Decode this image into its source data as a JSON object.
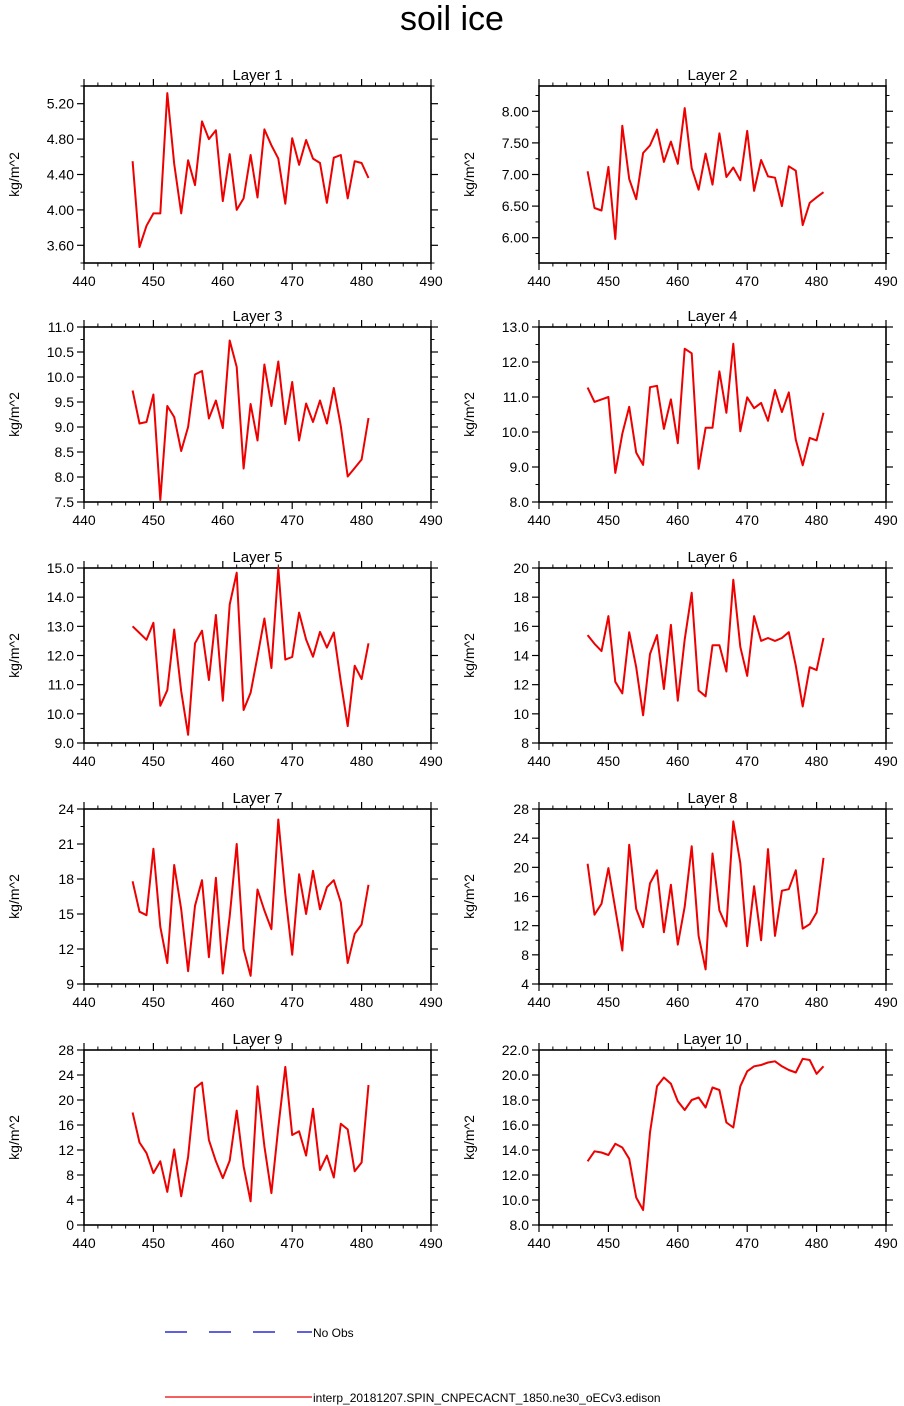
{
  "title": "soil ice",
  "legend": {
    "entries": [
      {
        "label": "No Obs",
        "color": "#0000cc",
        "style": "dashed"
      },
      {
        "label": "interp_20181207.SPIN_CNPECACNT_1850.ne30_oECv3.edison",
        "color": "#ee0000",
        "style": "solid"
      }
    ]
  },
  "chart_data": [
    {
      "type": "line",
      "title": "Layer 1",
      "ylabel": "kg/m^2",
      "xlim": [
        440,
        490
      ],
      "ylim": [
        3.4,
        5.4
      ],
      "xticks": [
        440,
        450,
        460,
        470,
        480,
        490
      ],
      "yticks": [
        3.6,
        4.0,
        4.4,
        4.8,
        5.2
      ],
      "ydecimals": 2,
      "series": [
        {
          "name": "interp_20181207.SPIN_CNPECACNT_1850.ne30_oECv3.edison",
          "x": [
            447,
            448,
            449,
            450,
            451,
            452,
            453,
            454,
            455,
            456,
            457,
            458,
            459,
            460,
            461,
            462,
            463,
            464,
            465,
            466,
            467,
            468,
            469,
            470,
            471,
            472,
            473,
            474,
            475,
            476,
            477,
            478,
            479,
            480,
            481
          ],
          "y": [
            4.55,
            3.58,
            3.82,
            3.96,
            3.96,
            5.32,
            4.52,
            3.96,
            4.56,
            4.28,
            5.0,
            4.8,
            4.9,
            4.1,
            4.63,
            4.0,
            4.13,
            4.62,
            4.14,
            4.91,
            4.73,
            4.58,
            4.07,
            4.81,
            4.51,
            4.79,
            4.58,
            4.53,
            4.08,
            4.59,
            4.62,
            4.13,
            4.55,
            4.53,
            4.36
          ]
        }
      ]
    },
    {
      "type": "line",
      "title": "Layer 2",
      "ylabel": "kg/m^2",
      "xlim": [
        440,
        490
      ],
      "ylim": [
        5.6,
        8.4
      ],
      "xticks": [
        440,
        450,
        460,
        470,
        480,
        490
      ],
      "yticks": [
        6.0,
        6.5,
        7.0,
        7.5,
        8.0
      ],
      "ydecimals": 2,
      "series": [
        {
          "name": "interp_20181207.SPIN_CNPECACNT_1850.ne30_oECv3.edison",
          "x": [
            447,
            448,
            449,
            450,
            451,
            452,
            453,
            454,
            455,
            456,
            457,
            458,
            459,
            460,
            461,
            462,
            463,
            464,
            465,
            466,
            467,
            468,
            469,
            470,
            471,
            472,
            473,
            474,
            475,
            476,
            477,
            478,
            479,
            480,
            481
          ],
          "y": [
            7.05,
            6.47,
            6.43,
            7.12,
            5.98,
            7.77,
            6.93,
            6.61,
            7.34,
            7.46,
            7.71,
            7.2,
            7.52,
            7.17,
            8.05,
            7.1,
            6.76,
            7.33,
            6.84,
            7.65,
            6.96,
            7.11,
            6.91,
            7.69,
            6.74,
            7.23,
            6.97,
            6.95,
            6.5,
            7.13,
            7.06,
            6.2,
            6.55,
            6.64,
            6.72
          ]
        }
      ]
    },
    {
      "type": "line",
      "title": "Layer 3",
      "ylabel": "kg/m^2",
      "xlim": [
        440,
        490
      ],
      "ylim": [
        7.5,
        11.0
      ],
      "xticks": [
        440,
        450,
        460,
        470,
        480,
        490
      ],
      "yticks": [
        7.5,
        8.0,
        8.5,
        9.0,
        9.5,
        10.0,
        10.5,
        11.0
      ],
      "ydecimals": 1,
      "series": [
        {
          "name": "interp_20181207.SPIN_CNPECACNT_1850.ne30_oECv3.edison",
          "x": [
            447,
            448,
            449,
            450,
            451,
            452,
            453,
            454,
            455,
            456,
            457,
            458,
            459,
            460,
            461,
            462,
            463,
            464,
            465,
            466,
            467,
            468,
            469,
            470,
            471,
            472,
            473,
            474,
            475,
            476,
            477,
            478,
            479,
            480,
            481
          ],
          "y": [
            9.73,
            9.07,
            9.1,
            9.65,
            7.54,
            9.42,
            9.2,
            8.52,
            9.0,
            10.05,
            10.12,
            9.17,
            9.53,
            8.98,
            10.73,
            10.2,
            8.17,
            9.46,
            8.73,
            10.25,
            9.42,
            10.31,
            9.06,
            9.9,
            8.73,
            9.47,
            9.1,
            9.53,
            9.07,
            9.78,
            9.02,
            8.01,
            8.18,
            8.35,
            9.18
          ]
        }
      ]
    },
    {
      "type": "line",
      "title": "Layer 4",
      "ylabel": "kg/m^2",
      "xlim": [
        440,
        490
      ],
      "ylim": [
        8.0,
        13.0
      ],
      "xticks": [
        440,
        450,
        460,
        470,
        480,
        490
      ],
      "yticks": [
        8.0,
        9.0,
        10.0,
        11.0,
        12.0,
        13.0
      ],
      "ydecimals": 1,
      "series": [
        {
          "name": "interp_20181207.SPIN_CNPECACNT_1850.ne30_oECv3.edison",
          "x": [
            447,
            448,
            449,
            450,
            451,
            452,
            453,
            454,
            455,
            456,
            457,
            458,
            459,
            460,
            461,
            462,
            463,
            464,
            465,
            466,
            467,
            468,
            469,
            470,
            471,
            472,
            473,
            474,
            475,
            476,
            477,
            478,
            479,
            480,
            481
          ],
          "y": [
            11.27,
            10.86,
            10.93,
            11.0,
            8.83,
            9.95,
            10.72,
            9.41,
            9.06,
            11.28,
            11.32,
            10.09,
            10.93,
            9.68,
            12.38,
            12.25,
            8.95,
            10.12,
            10.12,
            11.73,
            10.55,
            12.52,
            10.02,
            10.99,
            10.68,
            10.83,
            10.32,
            11.2,
            10.57,
            11.13,
            9.78,
            9.05,
            9.83,
            9.76,
            10.55
          ]
        }
      ]
    },
    {
      "type": "line",
      "title": "Layer 5",
      "ylabel": "kg/m^2",
      "xlim": [
        440,
        490
      ],
      "ylim": [
        9.0,
        15.0
      ],
      "xticks": [
        440,
        450,
        460,
        470,
        480,
        490
      ],
      "yticks": [
        9.0,
        10.0,
        11.0,
        12.0,
        13.0,
        14.0,
        15.0
      ],
      "ydecimals": 1,
      "series": [
        {
          "name": "interp_20181207.SPIN_CNPECACNT_1850.ne30_oECv3.edison",
          "x": [
            447,
            448,
            449,
            450,
            451,
            452,
            453,
            454,
            455,
            456,
            457,
            458,
            459,
            460,
            461,
            462,
            463,
            464,
            465,
            466,
            467,
            468,
            469,
            470,
            471,
            472,
            473,
            474,
            475,
            476,
            477,
            478,
            479,
            480,
            481
          ],
          "y": [
            13.0,
            12.77,
            12.54,
            13.12,
            10.28,
            10.81,
            12.89,
            10.78,
            9.28,
            12.42,
            12.85,
            11.16,
            13.39,
            10.45,
            13.75,
            14.84,
            10.13,
            10.72,
            11.97,
            13.27,
            11.57,
            15.0,
            11.86,
            11.95,
            13.47,
            12.55,
            11.96,
            12.81,
            12.27,
            12.79,
            11.1,
            9.58,
            11.65,
            11.19,
            12.42
          ]
        }
      ]
    },
    {
      "type": "line",
      "title": "Layer 6",
      "ylabel": "kg/m^2",
      "xlim": [
        440,
        490
      ],
      "ylim": [
        8,
        20
      ],
      "xticks": [
        440,
        450,
        460,
        470,
        480,
        490
      ],
      "yticks": [
        8,
        10,
        12,
        14,
        16,
        18,
        20
      ],
      "ydecimals": 0,
      "series": [
        {
          "name": "interp_20181207.SPIN_CNPECACNT_1850.ne30_oECv3.edison",
          "x": [
            447,
            448,
            449,
            450,
            451,
            452,
            453,
            454,
            455,
            456,
            457,
            458,
            459,
            460,
            461,
            462,
            463,
            464,
            465,
            466,
            467,
            468,
            469,
            470,
            471,
            472,
            473,
            474,
            475,
            476,
            477,
            478,
            479,
            480,
            481
          ],
          "y": [
            15.4,
            14.8,
            14.3,
            16.7,
            12.2,
            11.4,
            15.6,
            13.2,
            9.9,
            14.1,
            15.4,
            11.7,
            16.1,
            10.9,
            15.1,
            18.3,
            11.6,
            11.2,
            14.7,
            14.7,
            12.9,
            19.2,
            14.6,
            12.6,
            16.7,
            15.0,
            15.2,
            15.0,
            15.2,
            15.6,
            13.3,
            10.5,
            13.2,
            13.0,
            15.2
          ]
        }
      ]
    },
    {
      "type": "line",
      "title": "Layer 7",
      "ylabel": "kg/m^2",
      "xlim": [
        440,
        490
      ],
      "ylim": [
        9,
        24
      ],
      "xticks": [
        440,
        450,
        460,
        470,
        480,
        490
      ],
      "yticks": [
        9,
        12,
        15,
        18,
        21,
        24
      ],
      "ydecimals": 0,
      "series": [
        {
          "name": "interp_20181207.SPIN_CNPECACNT_1850.ne30_oECv3.edison",
          "x": [
            447,
            448,
            449,
            450,
            451,
            452,
            453,
            454,
            455,
            456,
            457,
            458,
            459,
            460,
            461,
            462,
            463,
            464,
            465,
            466,
            467,
            468,
            469,
            470,
            471,
            472,
            473,
            474,
            475,
            476,
            477,
            478,
            479,
            480,
            481
          ],
          "y": [
            17.8,
            15.2,
            14.9,
            20.6,
            13.9,
            10.8,
            19.2,
            15.4,
            10.1,
            15.7,
            17.9,
            11.3,
            18.1,
            9.9,
            14.8,
            21.0,
            12.0,
            9.7,
            17.1,
            15.3,
            13.7,
            23.1,
            16.7,
            11.5,
            18.4,
            15.0,
            18.7,
            15.4,
            17.3,
            17.9,
            16.0,
            10.8,
            13.3,
            14.1,
            17.5
          ]
        }
      ]
    },
    {
      "type": "line",
      "title": "Layer 8",
      "ylabel": "kg/m^2",
      "xlim": [
        440,
        490
      ],
      "ylim": [
        4,
        28
      ],
      "xticks": [
        440,
        450,
        460,
        470,
        480,
        490
      ],
      "yticks": [
        4,
        8,
        12,
        16,
        20,
        24,
        28
      ],
      "ydecimals": 0,
      "series": [
        {
          "name": "interp_20181207.SPIN_CNPECACNT_1850.ne30_oECv3.edison",
          "x": [
            447,
            448,
            449,
            450,
            451,
            452,
            453,
            454,
            455,
            456,
            457,
            458,
            459,
            460,
            461,
            462,
            463,
            464,
            465,
            466,
            467,
            468,
            469,
            470,
            471,
            472,
            473,
            474,
            475,
            476,
            477,
            478,
            479,
            480,
            481
          ],
          "y": [
            20.5,
            13.5,
            15.0,
            19.9,
            14.3,
            8.6,
            23.1,
            14.3,
            11.8,
            17.8,
            19.6,
            11.1,
            17.6,
            9.4,
            14.6,
            22.9,
            10.6,
            6.0,
            21.9,
            14.1,
            11.9,
            26.3,
            20.6,
            9.2,
            17.4,
            10.0,
            22.5,
            10.6,
            16.8,
            17.0,
            19.6,
            11.6,
            12.2,
            13.8,
            21.3
          ]
        }
      ]
    },
    {
      "type": "line",
      "title": "Layer 9",
      "ylabel": "kg/m^2",
      "xlim": [
        440,
        490
      ],
      "ylim": [
        0,
        28
      ],
      "xticks": [
        440,
        450,
        460,
        470,
        480,
        490
      ],
      "yticks": [
        0,
        4,
        8,
        12,
        16,
        20,
        24,
        28
      ],
      "ydecimals": 0,
      "series": [
        {
          "name": "interp_20181207.SPIN_CNPECACNT_1850.ne30_oECv3.edison",
          "x": [
            447,
            448,
            449,
            450,
            451,
            452,
            453,
            454,
            455,
            456,
            457,
            458,
            459,
            460,
            461,
            462,
            463,
            464,
            465,
            466,
            467,
            468,
            469,
            470,
            471,
            472,
            473,
            474,
            475,
            476,
            477,
            478,
            479,
            480,
            481
          ],
          "y": [
            18.0,
            13.2,
            11.5,
            8.3,
            10.2,
            5.3,
            12.1,
            4.6,
            10.9,
            21.9,
            22.8,
            13.6,
            10.2,
            7.5,
            10.3,
            18.3,
            9.4,
            3.8,
            22.2,
            12.6,
            5.1,
            15.6,
            25.3,
            14.4,
            15.0,
            11.1,
            18.6,
            8.8,
            11.1,
            7.6,
            16.2,
            15.3,
            8.6,
            10.0,
            22.4
          ]
        }
      ]
    },
    {
      "type": "line",
      "title": "Layer 10",
      "ylabel": "kg/m^2",
      "xlim": [
        440,
        490
      ],
      "ylim": [
        8.0,
        22.0
      ],
      "xticks": [
        440,
        450,
        460,
        470,
        480,
        490
      ],
      "yticks": [
        8.0,
        10.0,
        12.0,
        14.0,
        16.0,
        18.0,
        20.0,
        22.0
      ],
      "ydecimals": 1,
      "series": [
        {
          "name": "interp_20181207.SPIN_CNPECACNT_1850.ne30_oECv3.edison",
          "x": [
            447,
            448,
            449,
            450,
            451,
            452,
            453,
            454,
            455,
            456,
            457,
            458,
            459,
            460,
            461,
            462,
            463,
            464,
            465,
            466,
            467,
            468,
            469,
            470,
            471,
            472,
            473,
            474,
            475,
            476,
            477,
            478,
            479,
            480,
            481
          ],
          "y": [
            13.1,
            13.9,
            13.8,
            13.6,
            14.5,
            14.2,
            13.3,
            10.2,
            9.2,
            15.4,
            19.1,
            19.8,
            19.3,
            17.9,
            17.2,
            18.0,
            18.2,
            17.4,
            19.0,
            18.8,
            16.2,
            15.8,
            19.1,
            20.3,
            20.7,
            20.8,
            21.0,
            21.1,
            20.7,
            20.4,
            20.2,
            21.3,
            21.2,
            20.1,
            20.7
          ]
        }
      ]
    }
  ]
}
